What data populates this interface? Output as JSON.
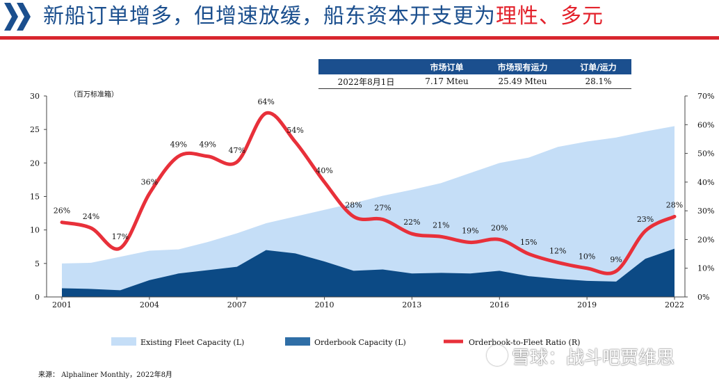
{
  "header": {
    "title_main": "新船订单增多，但增速放缓，船东资本开支更为",
    "title_highlight": "理性、多元"
  },
  "info_table": {
    "headers": [
      "",
      "市场订单",
      "市场现有运力",
      "订单/运力"
    ],
    "row": [
      "2022年8月1日",
      "7.17 Mteu",
      "25.49 Mteu",
      "28.1%"
    ]
  },
  "unit_label": "（百万标准箱）",
  "source": "来源： Alphaliner Monthly，2022年8月",
  "watermark": "雪球：战斗吧贾维思",
  "colors": {
    "existing_fleet": "#c5def7",
    "orderbook": "#0c4a85",
    "ratio": "#e8303a",
    "title": "#1b4f8e",
    "accent": "#d8262e"
  },
  "chart_data": {
    "type": "area",
    "x": [
      2001,
      2002,
      2003,
      2004,
      2005,
      2006,
      2007,
      2008,
      2009,
      2010,
      2011,
      2012,
      2013,
      2014,
      2015,
      2016,
      2017,
      2018,
      2019,
      2020,
      2021,
      2022
    ],
    "x_ticks": [
      "2001",
      "2004",
      "2007",
      "2010",
      "2013",
      "2016",
      "2019",
      "2022"
    ],
    "y_left_ticks": [
      "0",
      "5",
      "10",
      "15",
      "20",
      "25",
      "30"
    ],
    "y_right_ticks": [
      "0%",
      "10%",
      "20%",
      "30%",
      "40%",
      "50%",
      "60%",
      "70%"
    ],
    "ylim_left": [
      0,
      30
    ],
    "ylim_right": [
      0,
      70
    ],
    "series": [
      {
        "name": "Existing Fleet Capacity (L)",
        "axis": "left",
        "kind": "area",
        "values": [
          5.0,
          5.1,
          6.0,
          6.9,
          7.1,
          8.2,
          9.5,
          11.0,
          12.0,
          13.0,
          14.0,
          15.1,
          16.0,
          17.0,
          18.5,
          20.0,
          20.8,
          22.4,
          23.2,
          23.8,
          24.7,
          25.5
        ]
      },
      {
        "name": "Orderbook Capacity (L)",
        "axis": "left",
        "kind": "area",
        "values": [
          1.3,
          1.2,
          1.0,
          2.5,
          3.5,
          4.0,
          4.5,
          7.0,
          6.5,
          5.3,
          3.9,
          4.1,
          3.5,
          3.6,
          3.5,
          3.9,
          3.1,
          2.7,
          2.4,
          2.3,
          5.7,
          7.2
        ]
      },
      {
        "name": "Orderbook-to-Fleet Ratio (R)",
        "axis": "right",
        "kind": "line",
        "values": [
          26,
          24,
          17,
          36,
          49,
          49,
          47,
          64,
          54,
          40,
          28,
          27,
          22,
          21,
          19,
          20,
          15,
          12,
          10,
          9,
          23,
          28
        ],
        "labels": [
          "26%",
          "24%",
          "17%",
          "36%",
          "49%",
          "49%",
          "47%",
          "64%",
          "54%",
          "40%",
          "28%",
          "27%",
          "22%",
          "21%",
          "19%",
          "20%",
          "15%",
          "12%",
          "10%",
          "9%",
          "23%",
          "28%"
        ]
      }
    ],
    "legend": "bottom"
  }
}
